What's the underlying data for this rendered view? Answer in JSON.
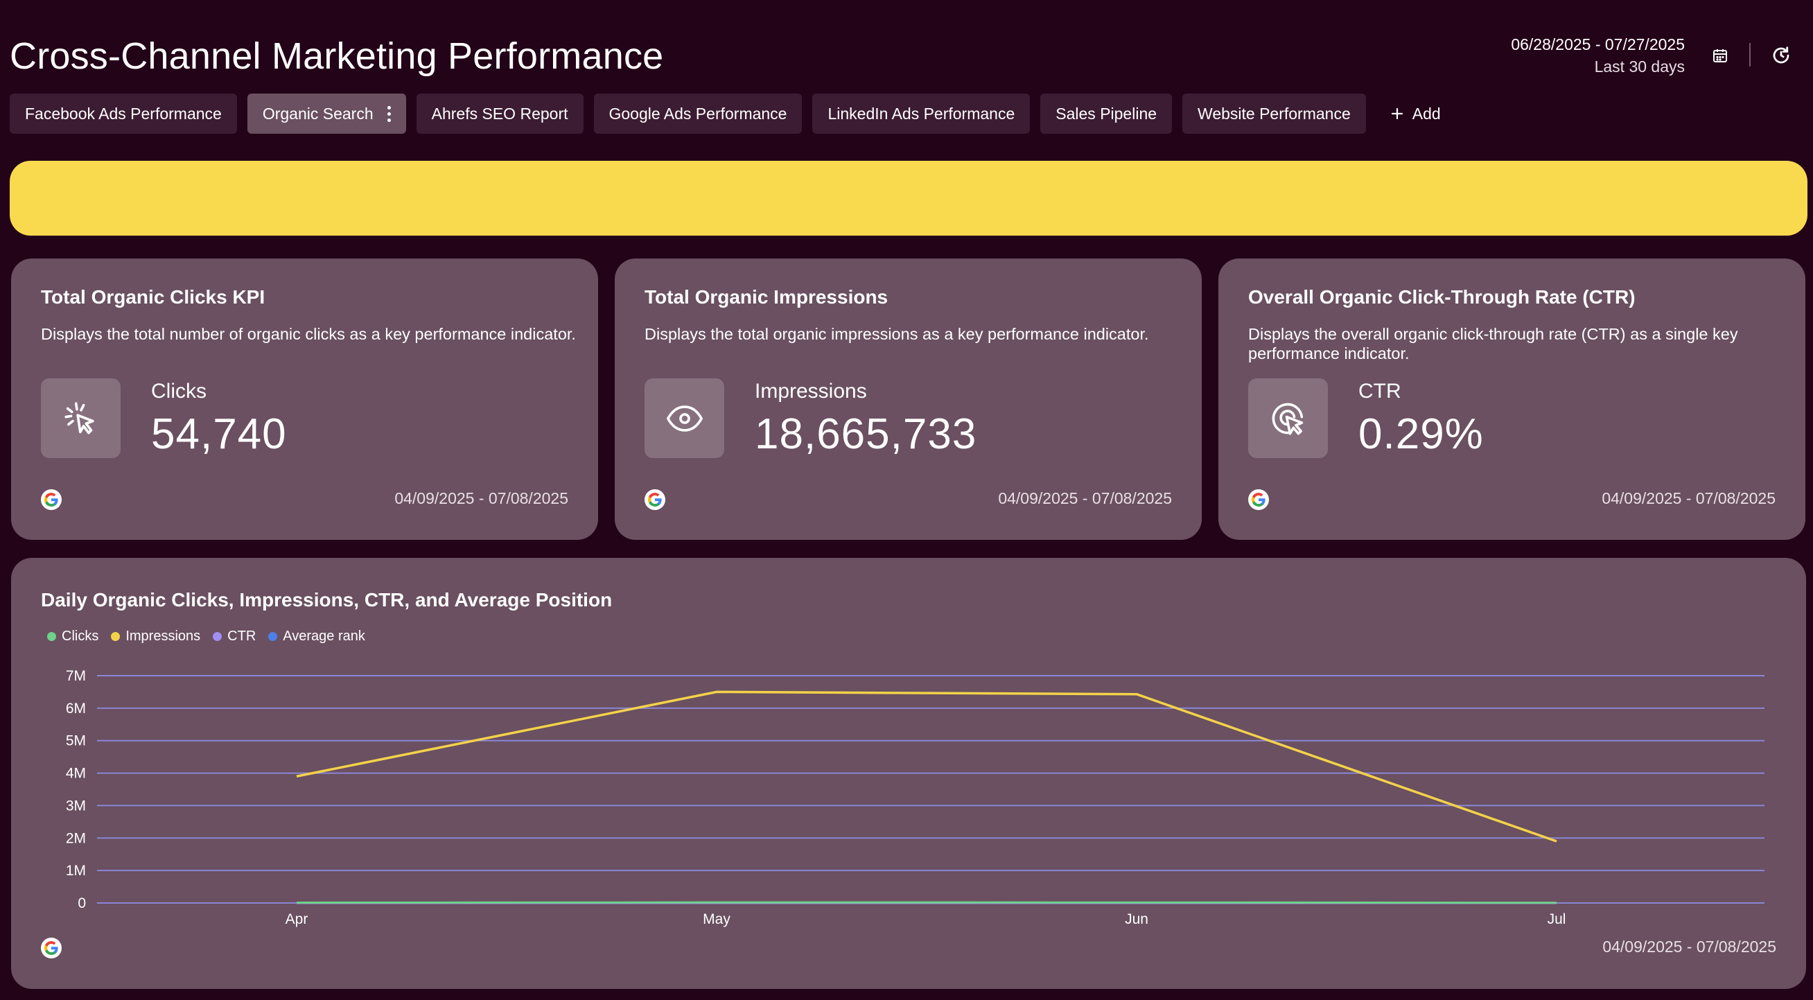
{
  "page": {
    "title": "Cross-Channel Marketing Performance",
    "date_range": "06/28/2025 - 07/27/2025",
    "date_preset": "Last 30 days",
    "icons": {
      "calendar": "calendar-icon",
      "refresh": "refresh-icon"
    }
  },
  "tabs": [
    {
      "label": "Facebook Ads Performance",
      "active": false
    },
    {
      "label": "Organic Search",
      "active": true
    },
    {
      "label": "Ahrefs SEO Report",
      "active": false
    },
    {
      "label": "Google Ads Performance",
      "active": false
    },
    {
      "label": "LinkedIn Ads Performance",
      "active": false
    },
    {
      "label": "Sales Pipeline",
      "active": false
    },
    {
      "label": "Website Performance",
      "active": false
    }
  ],
  "add_tab_label": "Add",
  "banner": {
    "color": "#f9da4f"
  },
  "kpis": [
    {
      "title": "Total Organic Clicks KPI",
      "description": "Displays the total number of organic clicks as a key performance indicator.",
      "label": "Clicks",
      "value": "54,740",
      "date_range": "04/09/2025 - 07/08/2025",
      "icon": "cursor-click-icon",
      "source_icon": "google-icon"
    },
    {
      "title": "Total Organic Impressions",
      "description": "Displays the total organic impressions as a key performance indicator.",
      "label": "Impressions",
      "value": "18,665,733",
      "date_range": "04/09/2025 - 07/08/2025",
      "icon": "eye-icon",
      "source_icon": "google-icon"
    },
    {
      "title": "Overall Organic Click-Through Rate (CTR)",
      "description": "Displays the overall organic click-through rate (CTR) as a single key performance indicator.",
      "label": "CTR",
      "value": "0.29%",
      "date_range": "04/09/2025 - 07/08/2025",
      "icon": "target-cursor-icon",
      "source_icon": "google-icon"
    }
  ],
  "chart_card": {
    "title": "Daily Organic Clicks, Impressions, CTR, and Average Position",
    "date_range": "04/09/2025 - 07/08/2025",
    "source_icon": "google-icon"
  },
  "chart_data": {
    "type": "line",
    "title": "Daily Organic Clicks, Impressions, CTR, and Average Position",
    "categories": [
      "Apr",
      "May",
      "Jun",
      "Jul"
    ],
    "y_ticks": [
      "0",
      "1M",
      "2M",
      "3M",
      "4M",
      "5M",
      "6M",
      "7M"
    ],
    "ylim": [
      0,
      7000000
    ],
    "grid": true,
    "legend_position": "top-left",
    "series": [
      {
        "name": "Clicks",
        "color": "#6fd18a",
        "values": [
          12000,
          18000,
          17000,
          7000
        ]
      },
      {
        "name": "Impressions",
        "color": "#f3d24a",
        "values": [
          3900000,
          6500000,
          6430000,
          1900000
        ]
      },
      {
        "name": "CTR",
        "color": "#a18ef2",
        "values": [
          0.3,
          0.28,
          0.27,
          0.35
        ]
      },
      {
        "name": "Average rank",
        "color": "#4f7fe8",
        "values": [
          10,
          9,
          9,
          11
        ]
      }
    ]
  }
}
